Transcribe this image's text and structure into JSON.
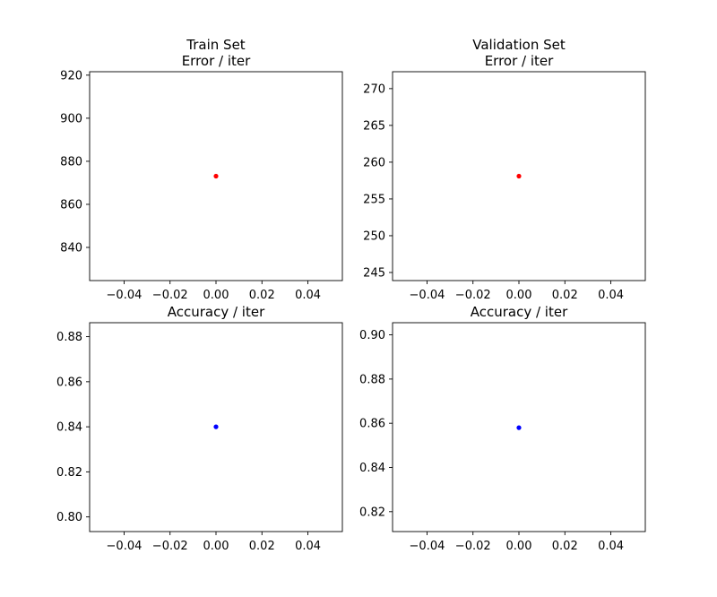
{
  "chart_data": [
    {
      "type": "scatter",
      "title": "Train Set\nError / iter",
      "xlabel": "",
      "ylabel": "",
      "xlim": [
        -0.055,
        0.055
      ],
      "ylim": [
        824.6,
        921.6
      ],
      "xticks": [
        -0.04,
        -0.02,
        0.0,
        0.02,
        0.04
      ],
      "xtick_labels": [
        "−0.04",
        "−0.02",
        "0.00",
        "0.02",
        "0.04"
      ],
      "yticks": [
        840,
        860,
        880,
        900,
        920
      ],
      "ytick_labels": [
        "840",
        "860",
        "880",
        "900",
        "920"
      ],
      "grid": false,
      "series": [
        {
          "color": "#ff0000",
          "points": [
            {
              "x": 0,
              "y": 873.1
            }
          ]
        }
      ]
    },
    {
      "type": "scatter",
      "title": "Validation Set\nError / iter",
      "xlabel": "",
      "ylabel": "",
      "xlim": [
        -0.055,
        0.055
      ],
      "ylim": [
        243.9,
        272.3
      ],
      "xticks": [
        -0.04,
        -0.02,
        0.0,
        0.02,
        0.04
      ],
      "xtick_labels": [
        "−0.04",
        "−0.02",
        "0.00",
        "0.02",
        "0.04"
      ],
      "yticks": [
        245,
        250,
        255,
        260,
        265,
        270
      ],
      "ytick_labels": [
        "245",
        "250",
        "255",
        "260",
        "265",
        "270"
      ],
      "grid": false,
      "series": [
        {
          "color": "#ff0000",
          "points": [
            {
              "x": 0,
              "y": 258.1
            }
          ]
        }
      ]
    },
    {
      "type": "scatter",
      "title": "Accuracy / iter",
      "xlabel": "",
      "ylabel": "",
      "xlim": [
        -0.055,
        0.055
      ],
      "ylim": [
        0.7935,
        0.8862
      ],
      "xticks": [
        -0.04,
        -0.02,
        0.0,
        0.02,
        0.04
      ],
      "xtick_labels": [
        "−0.04",
        "−0.02",
        "0.00",
        "0.02",
        "0.04"
      ],
      "yticks": [
        0.8,
        0.82,
        0.84,
        0.86,
        0.88
      ],
      "ytick_labels": [
        "0.80",
        "0.82",
        "0.84",
        "0.86",
        "0.88"
      ],
      "grid": false,
      "series": [
        {
          "color": "#0000ff",
          "points": [
            {
              "x": 0,
              "y": 0.84
            }
          ]
        }
      ]
    },
    {
      "type": "scatter",
      "title": "Accuracy / iter",
      "xlabel": "",
      "ylabel": "",
      "xlim": [
        -0.055,
        0.055
      ],
      "ylim": [
        0.811,
        0.9055
      ],
      "xticks": [
        -0.04,
        -0.02,
        0.0,
        0.02,
        0.04
      ],
      "xtick_labels": [
        "−0.04",
        "−0.02",
        "0.00",
        "0.02",
        "0.04"
      ],
      "yticks": [
        0.82,
        0.84,
        0.86,
        0.88,
        0.9
      ],
      "ytick_labels": [
        "0.82",
        "0.84",
        "0.86",
        "0.88",
        "0.90"
      ],
      "grid": false,
      "series": [
        {
          "color": "#0000ff",
          "points": [
            {
              "x": 0,
              "y": 0.858
            }
          ]
        }
      ]
    }
  ]
}
